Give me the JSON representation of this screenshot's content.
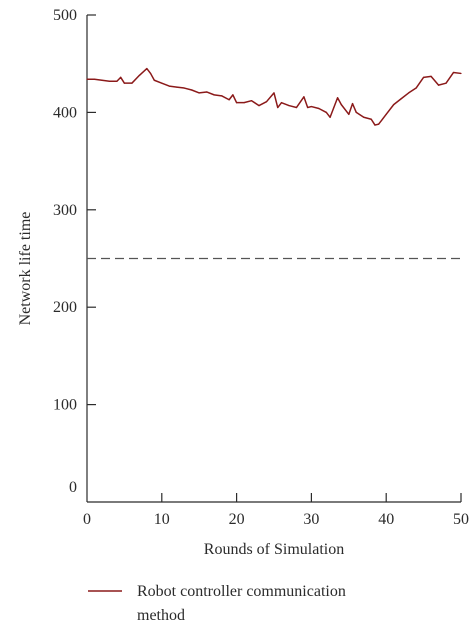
{
  "chart_data": {
    "type": "line",
    "xlabel": "Rounds of Simulation",
    "ylabel": "Network life time",
    "xlim": [
      0,
      50
    ],
    "ylim": [
      0,
      500
    ],
    "xticks": [
      "0",
      "10",
      "20",
      "30",
      "40",
      "50"
    ],
    "yticks": [
      "0",
      "100",
      "200",
      "300",
      "400",
      "500"
    ],
    "grid": false,
    "legend_placement": "bottom",
    "reference_line": {
      "y": 250,
      "style": "dashed",
      "color": "#555555"
    },
    "series": [
      {
        "name": "Robot controller communication method",
        "name_lines": [
          "Robot controller communication",
          "method"
        ],
        "color": "#8b1a1a",
        "x": [
          0,
          1,
          2,
          3,
          4,
          4.5,
          5,
          6,
          7,
          8,
          8.5,
          9,
          10,
          11,
          12,
          13,
          14,
          15,
          16,
          17,
          18,
          19,
          19.5,
          20,
          21,
          22,
          23,
          24,
          25,
          25.5,
          26,
          27,
          28,
          29,
          29.5,
          30,
          31,
          32,
          32.5,
          33,
          33.5,
          34,
          35,
          35.5,
          36,
          37,
          38,
          38.5,
          39,
          40,
          41,
          42,
          43,
          44,
          45,
          46,
          47,
          48,
          49,
          50
        ],
        "y": [
          434,
          434,
          433,
          432,
          432,
          436,
          430,
          430,
          438,
          445,
          440,
          433,
          430,
          427,
          426,
          425,
          423,
          420,
          421,
          418,
          417,
          413,
          418,
          410,
          410,
          412,
          407,
          411,
          420,
          405,
          410,
          407,
          405,
          416,
          405,
          406,
          404,
          400,
          395,
          405,
          415,
          408,
          398,
          409,
          400,
          395,
          393,
          387,
          388,
          398,
          408,
          414,
          420,
          425,
          436,
          437,
          428,
          430,
          441,
          440
        ]
      }
    ]
  }
}
